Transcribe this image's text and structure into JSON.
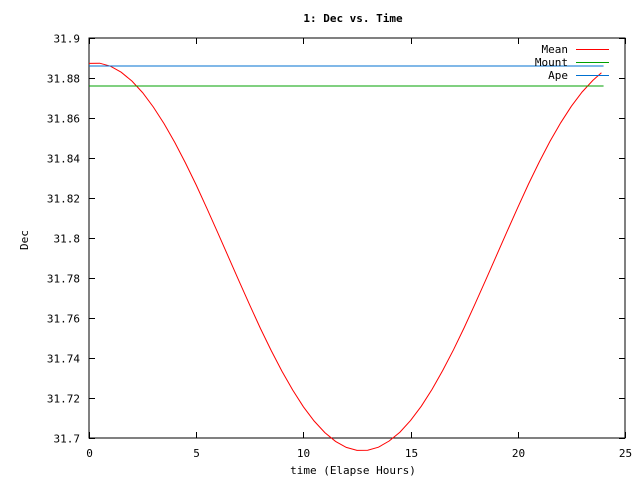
{
  "chart_data": {
    "type": "line",
    "title": "1: Dec vs. Time",
    "xlabel": "time (Elapse Hours)",
    "ylabel": "Dec",
    "xlim": [
      0,
      25
    ],
    "ylim": [
      31.7,
      31.9
    ],
    "xticks": [
      0,
      5,
      10,
      15,
      20,
      25
    ],
    "yticks": [
      31.7,
      31.72,
      31.74,
      31.76,
      31.78,
      31.8,
      31.82,
      31.84,
      31.86,
      31.88,
      31.9
    ],
    "legend_position": "top-right",
    "series": [
      {
        "name": "Mean",
        "color": "#ff0000",
        "x": [
          0,
          0.5,
          1,
          1.5,
          2,
          2.5,
          3,
          3.5,
          4,
          4.5,
          5,
          5.5,
          6,
          6.5,
          7,
          7.5,
          8,
          8.5,
          9,
          9.5,
          10,
          10.5,
          11,
          11.5,
          12,
          12.5,
          13,
          13.5,
          14,
          14.5,
          15,
          15.5,
          16,
          16.5,
          17,
          17.5,
          18,
          18.5,
          19,
          19.5,
          20,
          20.5,
          21,
          21.5,
          22,
          22.5,
          23,
          23.5,
          23.9
        ],
        "y": [
          31.8873,
          31.8874,
          31.8859,
          31.8829,
          31.8785,
          31.8727,
          31.8655,
          31.8572,
          31.8478,
          31.8375,
          31.8265,
          31.8148,
          31.8028,
          31.7906,
          31.7784,
          31.7664,
          31.7547,
          31.7437,
          31.7334,
          31.724,
          31.7156,
          31.7085,
          31.7027,
          31.6983,
          31.6953,
          31.6938,
          31.6939,
          31.6954,
          31.6985,
          31.7029,
          31.7088,
          31.7159,
          31.7243,
          31.7338,
          31.7441,
          31.7552,
          31.7669,
          31.7789,
          31.7911,
          31.8033,
          31.8153,
          31.827,
          31.838,
          31.8483,
          31.8576,
          31.8659,
          31.873,
          31.8788,
          31.8826
        ]
      },
      {
        "name": "Mount",
        "color": "#00a000",
        "x": [
          0,
          24
        ],
        "y": [
          31.876,
          31.876
        ]
      },
      {
        "name": "Ape",
        "color": "#0070d0",
        "x": [
          0,
          24
        ],
        "y": [
          31.886,
          31.886
        ]
      }
    ]
  }
}
